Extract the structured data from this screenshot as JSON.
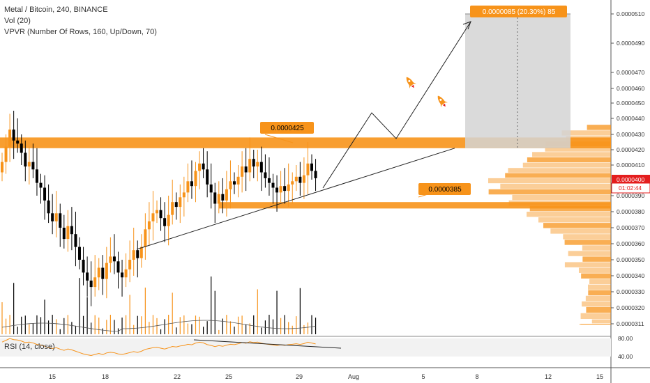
{
  "legend": {
    "title": "Metal / Bitcoin, 240, BINANCE",
    "vol": "Vol (20)",
    "vpvr": "VPVR (Number Of Rows, 160, Up/Down, 70)"
  },
  "rsi_label": "RSI (14, close)",
  "colors": {
    "up": "#f7931a",
    "down": "#000000",
    "zone": "#f7931a",
    "target_box": "#d3d3d3",
    "current_price_tag": "#e41e1e"
  },
  "annotations": {
    "resistance_label": "0.0000425",
    "support_label": "0.0000385",
    "target_label": "0.0000085 (20.30%) 85",
    "current_price": "0.0000400",
    "countdown": "01:02:44"
  },
  "icons": [
    "rocket-icon",
    "rocket-icon"
  ],
  "chart_data": {
    "type": "candlestick",
    "title": "Metal / Bitcoin, 240, BINANCE",
    "y_ticks": [
      "0.0000510",
      "0.0000490",
      "0.0000470",
      "0.0000460",
      "0.0000450",
      "0.0000440",
      "0.0000430",
      "0.0000420",
      "0.0000410",
      "0.0000390",
      "0.0000380",
      "0.0000370",
      "0.0000360",
      "0.0000350",
      "0.0000340",
      "0.0000330",
      "0.0000320",
      "0.0000311"
    ],
    "y_tick_values": [
      5.1e-05,
      4.9e-05,
      4.7e-05,
      4.6e-05,
      4.5e-05,
      4.4e-05,
      4.3e-05,
      4.2e-05,
      4.1e-05,
      3.9e-05,
      3.8e-05,
      3.7e-05,
      3.6e-05,
      3.5e-05,
      3.4e-05,
      3.3e-05,
      3.2e-05,
      3.11e-05
    ],
    "x_ticks": [
      "15",
      "18",
      "22",
      "25",
      "29",
      "Aug",
      "5",
      "8",
      "12",
      "15"
    ],
    "rsi_ticks": [
      "80.00",
      "40.00"
    ],
    "rsi_tick_values": [
      80,
      40
    ],
    "resistance": 4.25e-05,
    "support": 3.85e-05,
    "target": 5.1e-05,
    "current_price": 4e-05,
    "candles_sample": [
      {
        "x": "15",
        "close": 4e-05
      },
      {
        "x": "18",
        "close": 3.35e-05
      },
      {
        "x": "22",
        "close": 3.9e-05
      },
      {
        "x": "25",
        "close": 4.05e-05
      },
      {
        "x": "29",
        "close": 4e-05
      }
    ]
  }
}
